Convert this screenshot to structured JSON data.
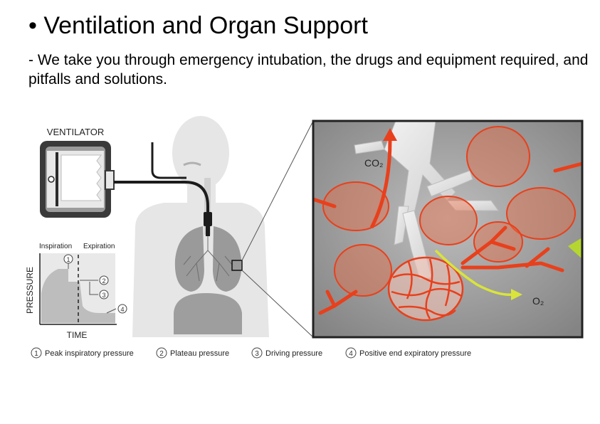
{
  "header": {
    "title": "• Ventilation and Organ Support",
    "subtitle": " - We take you through emergency intubation, the drugs and equipment required, and pitfalls and solutions."
  },
  "figure": {
    "ventilator_label": "VENTILATOR",
    "graph": {
      "inspiration_label": "Inspiration",
      "expiration_label": "Expiration",
      "y_axis_label": "PRESSURE",
      "x_axis_label": "TIME",
      "marker_1": "1",
      "marker_2": "2",
      "marker_3": "3",
      "marker_4": "4"
    },
    "zoom": {
      "co2_label": "CO₂",
      "o2_label": "O₂"
    },
    "legend": [
      {
        "num": "1",
        "text": "Peak inspiratory pressure"
      },
      {
        "num": "2",
        "text": "Plateau pressure"
      },
      {
        "num": "3",
        "text": "Driving pressure"
      },
      {
        "num": "4",
        "text": "Positive end expiratory pressure"
      }
    ],
    "colors": {
      "vessel_red": "#e8401c",
      "oxygen_yellow": "#d9e43a",
      "zoom_bg": "#8e8e8e",
      "ventilator_dark": "#3a3a3a",
      "body_gray": "#e6e6e6"
    }
  }
}
